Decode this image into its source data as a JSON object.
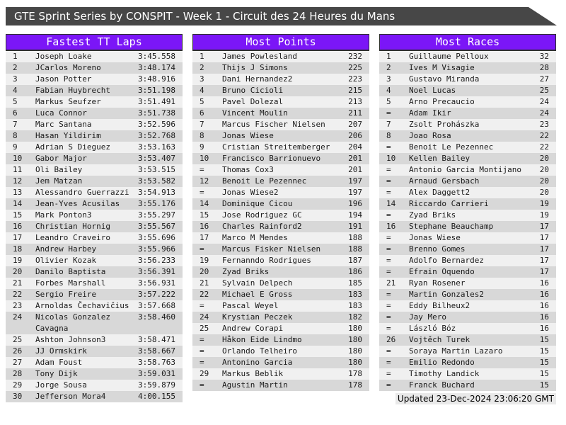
{
  "title_bar": {
    "text": "GTE Sprint Series by CONSPIT - Week 1 - Circuit des 24 Heures du Mans"
  },
  "colors": {
    "accent_purple": "#7b16f7",
    "title_bar_bg": "#474747",
    "row_light": "#f0f0f0",
    "row_dark": "#d8d8d8"
  },
  "footer": {
    "updated": "Updated 23-Dec-2024 23:06:20 GMT"
  },
  "boards": [
    {
      "title": "Fastest TT Laps",
      "rows": [
        {
          "rank": "1",
          "name": "Joseph Loake",
          "value": "3:45.558"
        },
        {
          "rank": "2",
          "name": "JCarlos Moreno",
          "value": "3:48.174"
        },
        {
          "rank": "3",
          "name": "Jason Potter",
          "value": "3:48.916"
        },
        {
          "rank": "4",
          "name": "Fabian Huybrecht",
          "value": "3:51.198"
        },
        {
          "rank": "5",
          "name": "Markus Seufzer",
          "value": "3:51.491"
        },
        {
          "rank": "6",
          "name": "Luca Connor",
          "value": "3:51.738"
        },
        {
          "rank": "7",
          "name": "Marc Santana",
          "value": "3:52.596"
        },
        {
          "rank": "8",
          "name": "Hasan Yildirim",
          "value": "3:52.768"
        },
        {
          "rank": "9",
          "name": "Adrian S Dieguez",
          "value": "3:53.163"
        },
        {
          "rank": "10",
          "name": "Gabor Major",
          "value": "3:53.407"
        },
        {
          "rank": "11",
          "name": "Oli Bailey",
          "value": "3:53.515"
        },
        {
          "rank": "12",
          "name": "Jem Matzan",
          "value": "3:53.582"
        },
        {
          "rank": "13",
          "name": "Alessandro Guerrazzi",
          "value": "3:54.913"
        },
        {
          "rank": "14",
          "name": "Jean-Yves Acusilas",
          "value": "3:55.176"
        },
        {
          "rank": "15",
          "name": "Mark Ponton3",
          "value": "3:55.297"
        },
        {
          "rank": "16",
          "name": "Christian Hornig",
          "value": "3:55.567"
        },
        {
          "rank": "17",
          "name": "Leandro Craveiro",
          "value": "3:55.696"
        },
        {
          "rank": "18",
          "name": "Andrew Harbey",
          "value": "3:55.966"
        },
        {
          "rank": "19",
          "name": "Olivier Kozak",
          "value": "3:56.233"
        },
        {
          "rank": "20",
          "name": "Danilo Baptista",
          "value": "3:56.391"
        },
        {
          "rank": "21",
          "name": "Forbes Marshall",
          "value": "3:56.931"
        },
        {
          "rank": "22",
          "name": "Sergio Freire",
          "value": "3:57.222"
        },
        {
          "rank": "23",
          "name": "Arnoldas Čechavičius",
          "value": "3:57.668"
        },
        {
          "rank": "24",
          "name": "Nicolas Gonzalez\nCavagna",
          "value": "3:58.460"
        },
        {
          "rank": "25",
          "name": "Ashton Johnson3",
          "value": "3:58.471"
        },
        {
          "rank": "26",
          "name": "JJ Ormskirk",
          "value": "3:58.667"
        },
        {
          "rank": "27",
          "name": "Adam Foust",
          "value": "3:58.763"
        },
        {
          "rank": "28",
          "name": "Tony Dijk",
          "value": "3:59.031"
        },
        {
          "rank": "29",
          "name": "Jorge Sousa",
          "value": "3:59.879"
        },
        {
          "rank": "30",
          "name": "Jefferson Mora4",
          "value": "4:00.155"
        }
      ]
    },
    {
      "title": "Most Points",
      "rows": [
        {
          "rank": "1",
          "name": "James Powlesland",
          "value": "232"
        },
        {
          "rank": "2",
          "name": "Thijs J Simons",
          "value": "225"
        },
        {
          "rank": "3",
          "name": "Dani Hernandez2",
          "value": "223"
        },
        {
          "rank": "4",
          "name": "Bruno Cicioli",
          "value": "215"
        },
        {
          "rank": "5",
          "name": "Pavel Dolezal",
          "value": "213"
        },
        {
          "rank": "6",
          "name": "Vincent Moulin",
          "value": "211"
        },
        {
          "rank": "7",
          "name": "Marcus Fischer Nielsen",
          "value": "207"
        },
        {
          "rank": "8",
          "name": "Jonas Wiese",
          "value": "206"
        },
        {
          "rank": "9",
          "name": "Cristian Streitemberger",
          "value": "204"
        },
        {
          "rank": "10",
          "name": "Francisco Barrionuevo",
          "value": "201"
        },
        {
          "rank": "=",
          "name": "Thomas Cox3",
          "value": "201"
        },
        {
          "rank": "12",
          "name": "Benoit Le Pezennec",
          "value": "197"
        },
        {
          "rank": "=",
          "name": "Jonas Wiese2",
          "value": "197"
        },
        {
          "rank": "14",
          "name": "Dominique Cicou",
          "value": "196"
        },
        {
          "rank": "15",
          "name": "Jose Rodriguez GC",
          "value": "194"
        },
        {
          "rank": "16",
          "name": "Charles Rainford2",
          "value": "191"
        },
        {
          "rank": "17",
          "name": "Marco M Mendes",
          "value": "188"
        },
        {
          "rank": "=",
          "name": "Marcus Fisker Nielsen",
          "value": "188"
        },
        {
          "rank": "19",
          "name": "Fernanndo Rodrigues",
          "value": "187"
        },
        {
          "rank": "20",
          "name": "Zyad Briks",
          "value": "186"
        },
        {
          "rank": "21",
          "name": "Sylvain Delpech",
          "value": "185"
        },
        {
          "rank": "22",
          "name": "Michael E Gross",
          "value": "183"
        },
        {
          "rank": "=",
          "name": "Pascal Weyel",
          "value": "183"
        },
        {
          "rank": "24",
          "name": "Krystian Peczek",
          "value": "182"
        },
        {
          "rank": "25",
          "name": "Andrew Corapi",
          "value": "180"
        },
        {
          "rank": "=",
          "name": "Håkon Eide Lindmo",
          "value": "180"
        },
        {
          "rank": "=",
          "name": "Orlando Telheiro",
          "value": "180"
        },
        {
          "rank": "=",
          "name": "Antonino Garcia",
          "value": "180"
        },
        {
          "rank": "29",
          "name": "Markus Beblik",
          "value": "178"
        },
        {
          "rank": "=",
          "name": "Agustin Martin",
          "value": "178"
        }
      ]
    },
    {
      "title": "Most Races",
      "rows": [
        {
          "rank": "1",
          "name": "Guillaume Pelloux",
          "value": "32"
        },
        {
          "rank": "2",
          "name": "Ives M Visagie",
          "value": "28"
        },
        {
          "rank": "3",
          "name": "Gustavo Miranda",
          "value": "27"
        },
        {
          "rank": "4",
          "name": "Noel Lucas",
          "value": "25"
        },
        {
          "rank": "5",
          "name": "Arno Precaucio",
          "value": "24"
        },
        {
          "rank": "=",
          "name": "Adam Ikir",
          "value": "24"
        },
        {
          "rank": "7",
          "name": "Zsolt Prohászka",
          "value": "23"
        },
        {
          "rank": "8",
          "name": "Joao Rosa",
          "value": "22"
        },
        {
          "rank": "=",
          "name": "Benoit Le Pezennec",
          "value": "22"
        },
        {
          "rank": "10",
          "name": "Kellen Bailey",
          "value": "20"
        },
        {
          "rank": "=",
          "name": "Antonio Garcia Montijano",
          "value": "20"
        },
        {
          "rank": "=",
          "name": "Arnaud Gersbach",
          "value": "20"
        },
        {
          "rank": "=",
          "name": "Alex Daggett2",
          "value": "20"
        },
        {
          "rank": "14",
          "name": "Riccardo Carrieri",
          "value": "19"
        },
        {
          "rank": "=",
          "name": "Zyad Briks",
          "value": "19"
        },
        {
          "rank": "16",
          "name": "Stephane Beauchamp",
          "value": "17"
        },
        {
          "rank": "=",
          "name": "Jonas Wiese",
          "value": "17"
        },
        {
          "rank": "=",
          "name": "Brenno Gomes",
          "value": "17"
        },
        {
          "rank": "=",
          "name": "Adolfo Bernardez",
          "value": "17"
        },
        {
          "rank": "=",
          "name": "Efrain Oquendo",
          "value": "17"
        },
        {
          "rank": "21",
          "name": "Ryan Rosener",
          "value": "16"
        },
        {
          "rank": "=",
          "name": "Martin Gonzales2",
          "value": "16"
        },
        {
          "rank": "=",
          "name": "Eddy Bilheux2",
          "value": "16"
        },
        {
          "rank": "=",
          "name": "Jay Mero",
          "value": "16"
        },
        {
          "rank": "=",
          "name": "László Bóz",
          "value": "16"
        },
        {
          "rank": "26",
          "name": "Vojtěch Turek",
          "value": "15"
        },
        {
          "rank": "=",
          "name": "Soraya Martin Lazaro",
          "value": "15"
        },
        {
          "rank": "=",
          "name": "Emilio Redondo",
          "value": "15"
        },
        {
          "rank": "=",
          "name": "Timothy Landick",
          "value": "15"
        },
        {
          "rank": "=",
          "name": "Franck Buchard",
          "value": "15"
        }
      ]
    }
  ]
}
